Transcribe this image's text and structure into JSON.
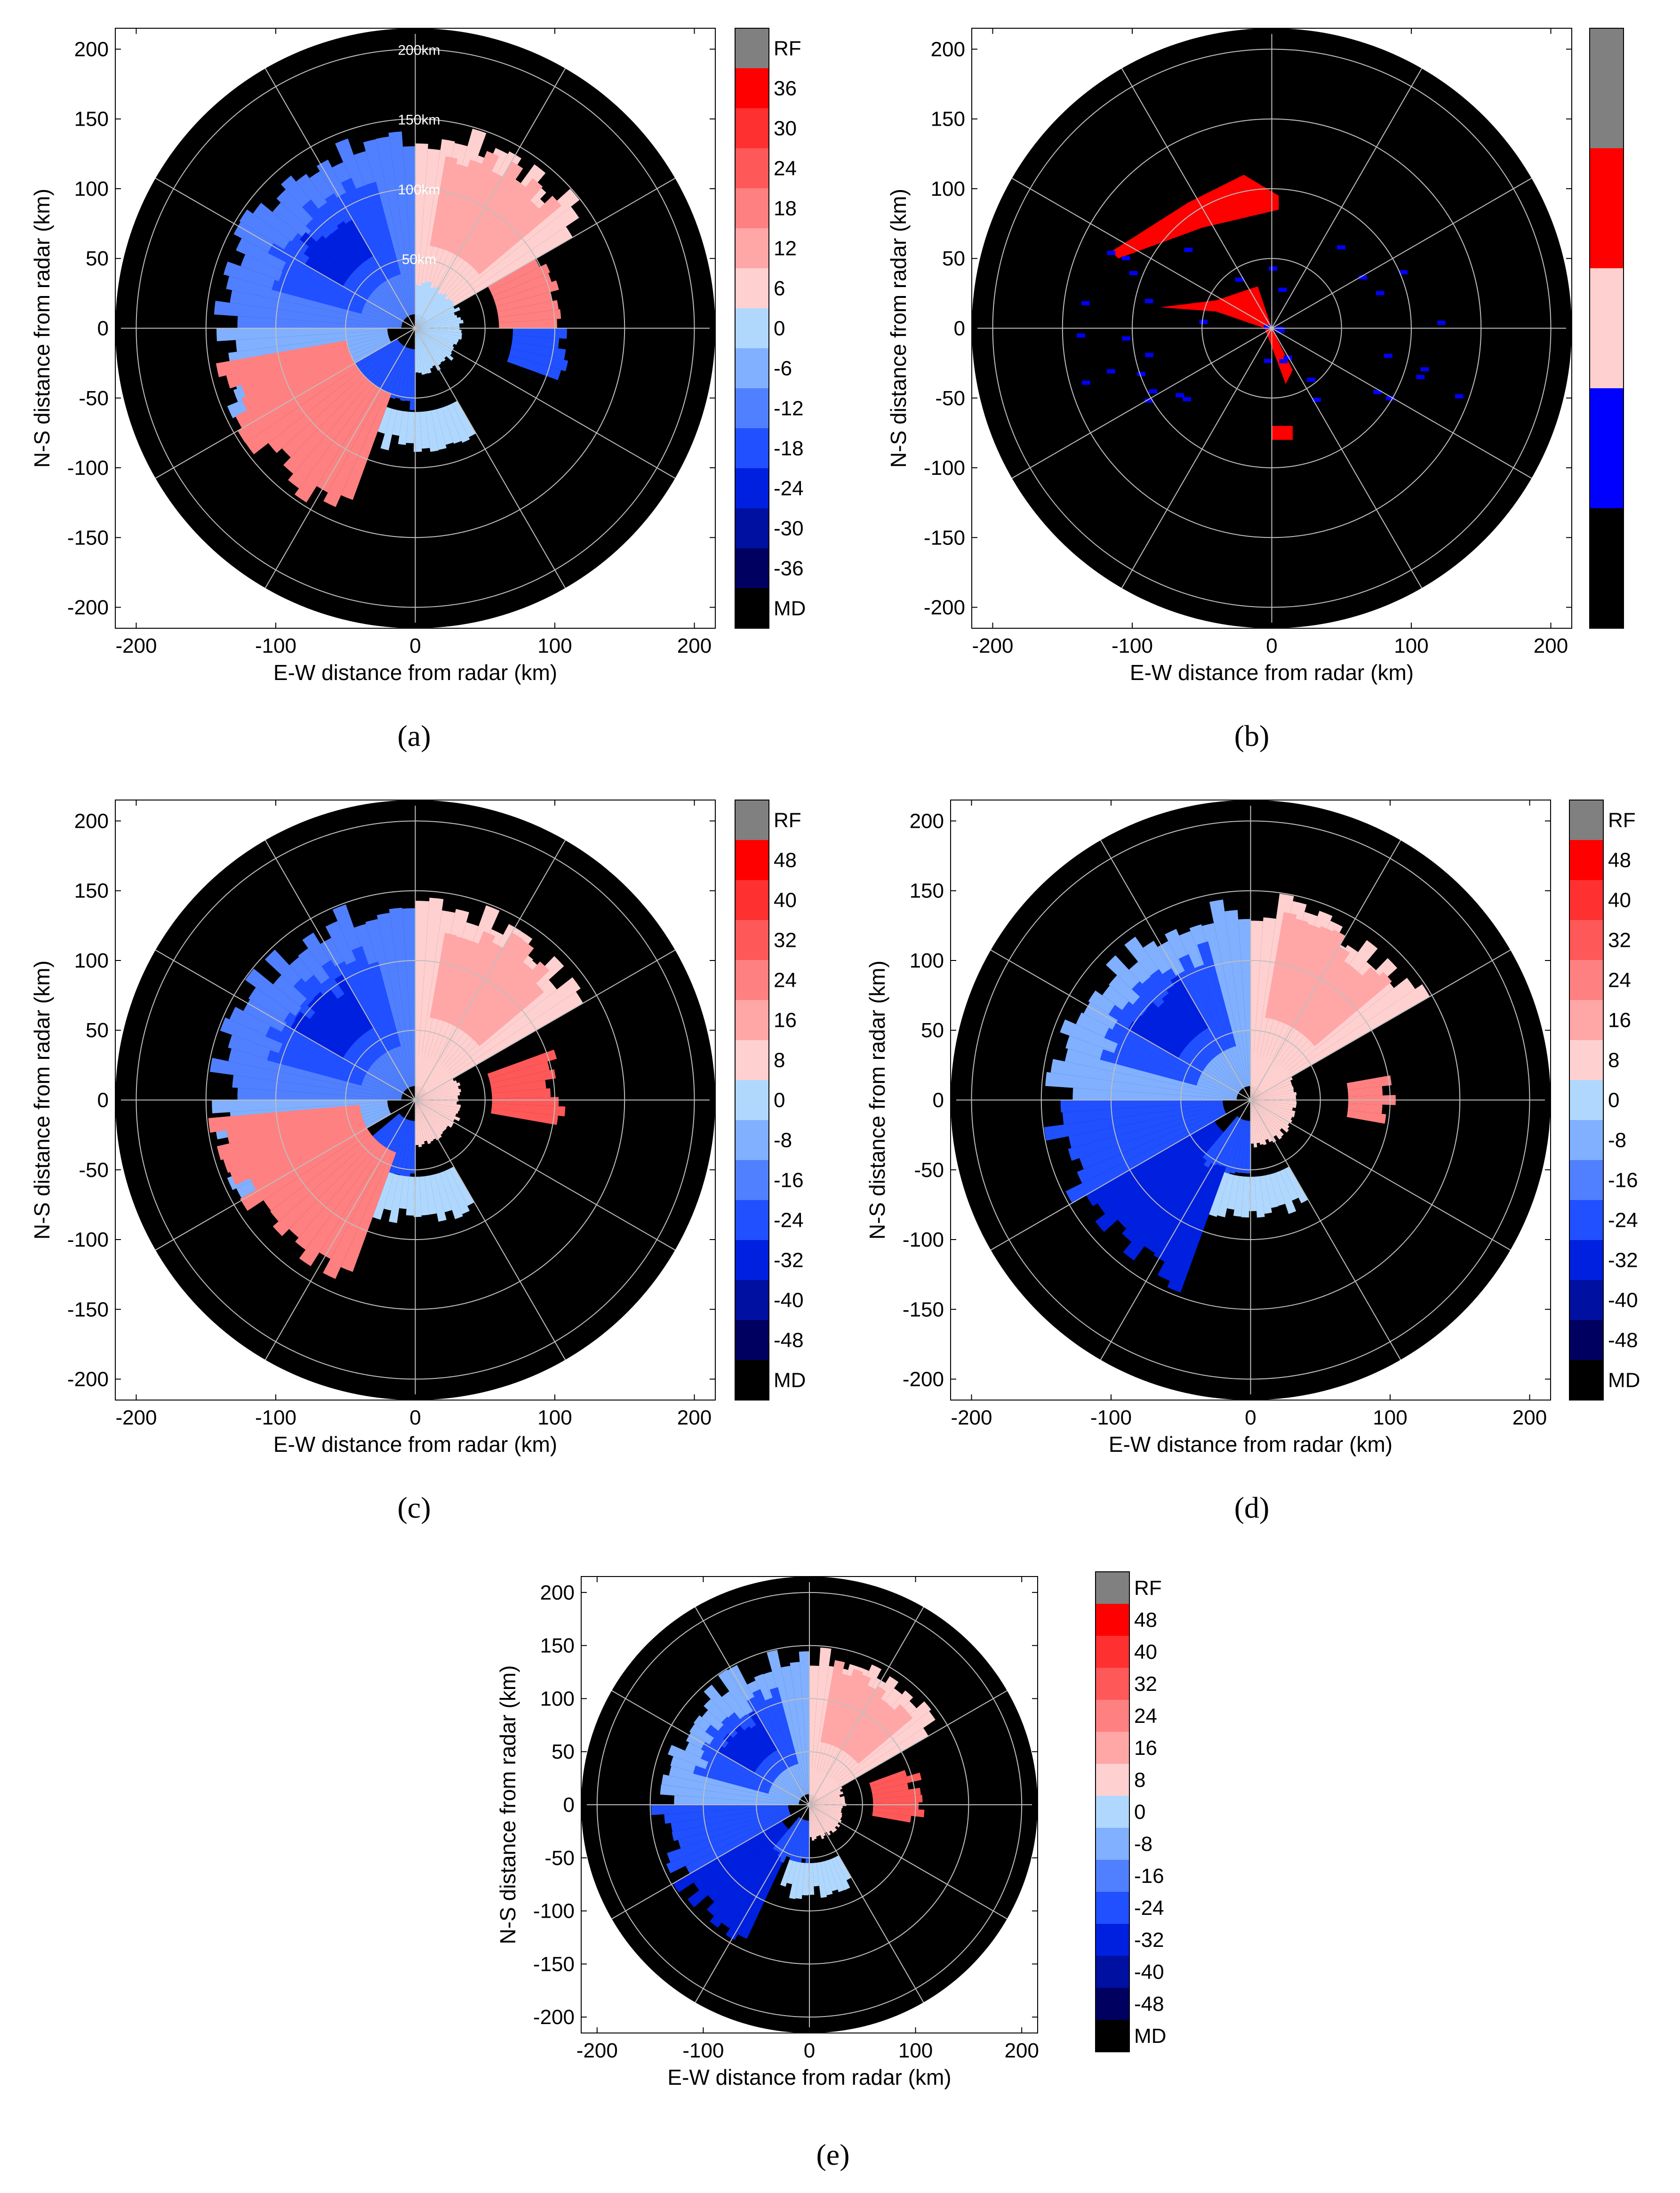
{
  "chart_data": [
    {
      "type": "heatmap",
      "panel_label": "(a)",
      "xlabel": "E-W distance from radar (km)",
      "ylabel": "N-S distance from radar (km)",
      "xlim": [
        -215,
        215
      ],
      "ylim": [
        -215,
        215
      ],
      "xticks": [
        "-200",
        "-100",
        "0",
        "100",
        "200"
      ],
      "yticks": [
        "200",
        "150",
        "100",
        "50",
        "0",
        "-50",
        "-100",
        "-150",
        "-200"
      ],
      "range_ring_labels": [
        "200km",
        "150km",
        "100km",
        "50km"
      ],
      "colorbar": {
        "labels": [
          "RF",
          "36",
          "30",
          "24",
          "18",
          "12",
          "6",
          "0",
          "-6",
          "-12",
          "-18",
          "-24",
          "-30",
          "-36",
          "MD"
        ],
        "colors": [
          "#808080",
          "#ff0000",
          "#ff3030",
          "#ff5858",
          "#ff8080",
          "#ffa6a6",
          "#ffd0d0",
          "#b0d8ff",
          "#80b0ff",
          "#5080ff",
          "#2050ff",
          "#0020e0",
          "#0010a0",
          "#000060",
          "#000000"
        ]
      }
    },
    {
      "type": "heatmap",
      "panel_label": "(b)",
      "xlabel": "E-W distance from radar (km)",
      "ylabel": "N-S distance from radar (km)",
      "xlim": [
        -215,
        215
      ],
      "ylim": [
        -215,
        215
      ],
      "xticks": [
        "-200",
        "-100",
        "0",
        "100",
        "200"
      ],
      "yticks": [
        "200",
        "150",
        "100",
        "50",
        "0",
        "-50",
        "-100",
        "-150",
        "-200"
      ],
      "colorbar": {
        "labels": [],
        "colors": [
          "#808080",
          "#ff0000",
          "#ffd0d0",
          "#0000ff",
          "#000000"
        ]
      }
    },
    {
      "type": "heatmap",
      "panel_label": "(c)",
      "xlabel": "E-W distance from radar (km)",
      "ylabel": "N-S distance from radar (km)",
      "xlim": [
        -215,
        215
      ],
      "ylim": [
        -215,
        215
      ],
      "xticks": [
        "-200",
        "-100",
        "0",
        "100",
        "200"
      ],
      "yticks": [
        "200",
        "150",
        "100",
        "50",
        "0",
        "-50",
        "-100",
        "-150",
        "-200"
      ],
      "colorbar": {
        "labels": [
          "RF",
          "48",
          "40",
          "32",
          "24",
          "16",
          "8",
          "0",
          "-8",
          "-16",
          "-24",
          "-32",
          "-40",
          "-48",
          "MD"
        ],
        "colors": [
          "#808080",
          "#ff0000",
          "#ff3030",
          "#ff5858",
          "#ff8080",
          "#ffa6a6",
          "#ffd0d0",
          "#b0d8ff",
          "#80b0ff",
          "#5080ff",
          "#2050ff",
          "#0020e0",
          "#0010a0",
          "#000060",
          "#000000"
        ]
      }
    },
    {
      "type": "heatmap",
      "panel_label": "(d)",
      "xlabel": "E-W distance from radar (km)",
      "ylabel": "N-S distance from radar (km)",
      "xlim": [
        -215,
        215
      ],
      "ylim": [
        -215,
        215
      ],
      "xticks": [
        "-200",
        "-100",
        "0",
        "100",
        "200"
      ],
      "yticks": [
        "200",
        "150",
        "100",
        "50",
        "0",
        "-50",
        "-100",
        "-150",
        "-200"
      ],
      "colorbar": {
        "labels": [
          "RF",
          "48",
          "40",
          "32",
          "24",
          "16",
          "8",
          "0",
          "-8",
          "-16",
          "-24",
          "-32",
          "-40",
          "-48",
          "MD"
        ],
        "colors": [
          "#808080",
          "#ff0000",
          "#ff3030",
          "#ff5858",
          "#ff8080",
          "#ffa6a6",
          "#ffd0d0",
          "#b0d8ff",
          "#80b0ff",
          "#5080ff",
          "#2050ff",
          "#0020e0",
          "#0010a0",
          "#000060",
          "#000000"
        ]
      }
    },
    {
      "type": "heatmap",
      "panel_label": "(e)",
      "xlabel": "E-W distance from radar (km)",
      "ylabel": "N-S distance from radar (km)",
      "xlim": [
        -215,
        215
      ],
      "ylim": [
        -215,
        215
      ],
      "xticks": [
        "-200",
        "-100",
        "0",
        "100",
        "200"
      ],
      "yticks": [
        "200",
        "150",
        "100",
        "50",
        "0",
        "-50",
        "-100",
        "-150",
        "-200"
      ],
      "colorbar": {
        "labels": [
          "RF",
          "48",
          "40",
          "32",
          "24",
          "16",
          "8",
          "0",
          "-8",
          "-16",
          "-24",
          "-32",
          "-40",
          "-48",
          "MD"
        ],
        "colors": [
          "#808080",
          "#ff0000",
          "#ff3030",
          "#ff5858",
          "#ff8080",
          "#ffa6a6",
          "#ffd0d0",
          "#b0d8ff",
          "#80b0ff",
          "#5080ff",
          "#2050ff",
          "#0020e0",
          "#0010a0",
          "#000060",
          "#000000"
        ]
      }
    }
  ]
}
